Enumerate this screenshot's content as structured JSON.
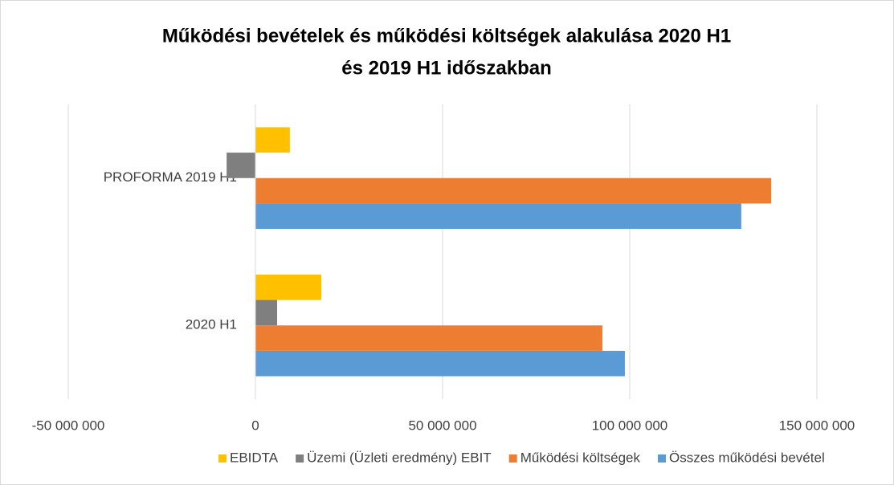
{
  "chart_data": {
    "type": "hbar",
    "title": [
      "Működési bevételek és működési költségek  alakulása   2020 H1",
      "és 2019 H1 időszakban"
    ],
    "categories": [
      "PROFORMA 2019 H1",
      "2020 H1"
    ],
    "series": [
      {
        "name": "EBIDTA",
        "color": "#ffc000",
        "values": [
          9200000,
          17600000
        ]
      },
      {
        "name": "Üzemi (Üzleti eredmény) EBIT",
        "color": "#7f7f7f",
        "values": [
          -7700000,
          5800000
        ]
      },
      {
        "name": "Működési költségek",
        "color": "#ed7d31",
        "values": [
          137800000,
          92700000
        ]
      },
      {
        "name": "Összes működési bevétel",
        "color": "#5b9bd5",
        "values": [
          129800000,
          98700000
        ]
      }
    ],
    "xlim": [
      -50000000,
      150000000
    ],
    "xticks": [
      {
        "value": -50000000,
        "label": "-50 000 000"
      },
      0,
      {
        "value": 50000000,
        "label": "50 000 000"
      },
      {
        "value": 100000000,
        "label": "100 000 000"
      },
      {
        "value": 150000000,
        "label": "150 000 000"
      }
    ],
    "grid": true,
    "legend": "bottom"
  }
}
